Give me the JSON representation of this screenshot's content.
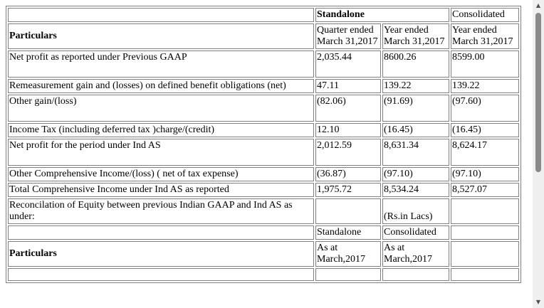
{
  "header": {
    "standalone": "Standalone",
    "consolidated": "Consolidated",
    "particulars": "Particulars",
    "col_quarter": "Quarter ended March 31,2017",
    "col_year_standalone": "Year ended March 31,2017",
    "col_year_consolidated": "Year ended March 31,2017"
  },
  "rows": [
    {
      "label": "Net profit as reported under Previous GAAP",
      "q": "2,035.44",
      "y": "8600.26",
      "c": "8599.00"
    },
    {
      "label": "Remeasurement gain and (losses) on defined benefit obligations (net)",
      "q": "47.11",
      "y": "139.22",
      "c": "139.22"
    },
    {
      "label": "Other gain/(loss)",
      "q": "(82.06)",
      "y": "(91.69)",
      "c": "(97.60)"
    },
    {
      "label": "Income Tax (including deferred tax )charge/(credit)",
      "q": "12.10",
      "y": "(16.45)",
      "c": "(16.45)"
    },
    {
      "label": "Net profit for the period under Ind AS",
      "q": "2,012.59",
      "y": "8,631.34",
      "c": "8,624.17"
    },
    {
      "label": "Other Comprehensive Income/(loss) ( net of tax expense)",
      "q": "(36.87)",
      "y": "(97.10)",
      "c": "(97.10)"
    },
    {
      "label": "Total Comprehensive Income under Ind AS as reported",
      "q": "1,975.72",
      "y": "8,534.24",
      "c": "8,527.07"
    }
  ],
  "equity": {
    "title": "Reconcilation of Equity between previous Indian GAAP and Ind AS as under:",
    "unit": "(Rs.in Lacs)",
    "standalone": "Standalone",
    "consolidated": "Consolidated",
    "particulars": "Particulars",
    "col_standalone": "As at March,2017",
    "col_consolidated": "As at March,2017"
  },
  "scrollbar": {
    "up_icon": "triangle-up",
    "down_icon": "triangle-down"
  }
}
